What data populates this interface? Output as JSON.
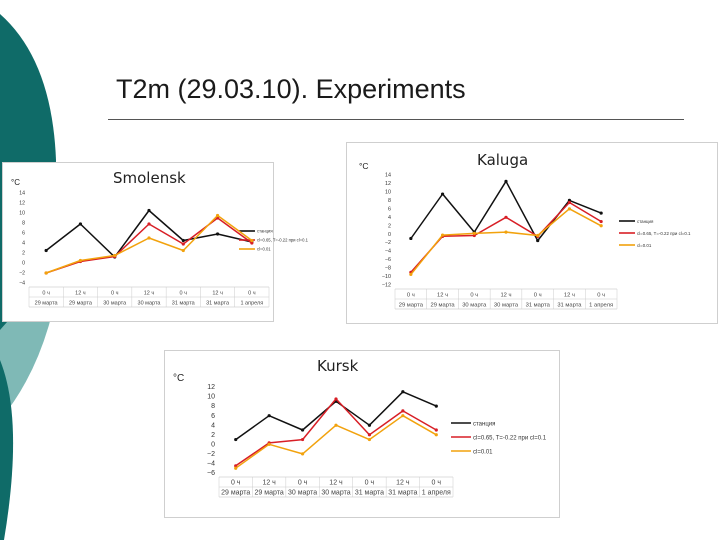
{
  "slide": {
    "title": "T2m (29.03.10). Experiments"
  },
  "colors": {
    "slide_teal": "#0f6b68",
    "slide_teal_light": "#7fb9b6",
    "observed": "#111111",
    "exp1": "#d81f26",
    "exp2": "#f2a20d"
  },
  "chart_data": [
    {
      "type": "line",
      "title": "Smolensk",
      "ylabel": "°C",
      "ylim": [
        -4,
        14
      ],
      "yticks": [
        -4,
        -2,
        0,
        2,
        4,
        6,
        8,
        10,
        12,
        14
      ],
      "x_time": [
        "0 ч",
        "12 ч",
        "0 ч",
        "12 ч",
        "0 ч",
        "12 ч",
        "0 ч"
      ],
      "x_date": [
        "29 марта",
        "29 марта",
        "30 марта",
        "30 марта",
        "31 марта",
        "31 марта",
        "1 апреля"
      ],
      "legend": "right",
      "series": [
        {
          "name": "станция",
          "color": "#111111",
          "values": [
            2.5,
            7.8,
            1.2,
            10.5,
            4.5,
            5.8,
            4.2
          ]
        },
        {
          "name": "cl=0.65, T=-0.22 при cl=0.1",
          "color": "#d81f26",
          "values": [
            -2.0,
            0.3,
            1.3,
            7.8,
            3.8,
            9.0,
            4.0
          ]
        },
        {
          "name": "cl=0.01",
          "color": "#f2a20d",
          "values": [
            -2.0,
            0.5,
            1.5,
            5.0,
            2.5,
            9.5,
            4.5
          ]
        }
      ]
    },
    {
      "type": "line",
      "title": "Kaluga",
      "ylabel": "°C",
      "ylim": [
        -12,
        14
      ],
      "yticks": [
        -12,
        -10,
        -8,
        -6,
        -4,
        -2,
        0,
        2,
        4,
        6,
        8,
        10,
        12,
        14
      ],
      "x_time": [
        "0 ч",
        "12 ч",
        "0 ч",
        "12 ч",
        "0 ч",
        "12 ч",
        "0 ч"
      ],
      "x_date": [
        "29 марта",
        "29 марта",
        "30 марта",
        "30 марта",
        "31 марта",
        "31 марта",
        "1 апреля"
      ],
      "legend": "right",
      "series": [
        {
          "name": "станция",
          "color": "#111111",
          "values": [
            -1.0,
            9.5,
            0.5,
            12.5,
            -1.5,
            8.0,
            5.0
          ]
        },
        {
          "name": "cl=0.65, T=-0.22 при cl=0.1",
          "color": "#d81f26",
          "values": [
            -9.0,
            -0.5,
            -0.3,
            4.0,
            -0.5,
            7.5,
            3.0
          ]
        },
        {
          "name": "cl=0.01",
          "color": "#f2a20d",
          "values": [
            -9.5,
            -0.2,
            0.2,
            0.5,
            -0.3,
            6.0,
            2.0
          ]
        }
      ]
    },
    {
      "type": "line",
      "title": "Kursk",
      "ylabel": "°C",
      "ylim": [
        -6,
        12
      ],
      "yticks": [
        -6,
        -4,
        -2,
        0,
        2,
        4,
        6,
        8,
        10,
        12
      ],
      "x_time": [
        "0 ч",
        "12 ч",
        "0 ч",
        "12 ч",
        "0 ч",
        "12 ч",
        "0 ч"
      ],
      "x_date": [
        "29 марта",
        "29 марта",
        "30 марта",
        "30 марта",
        "31 марта",
        "31 марта",
        "1 апреля"
      ],
      "legend": "right",
      "series": [
        {
          "name": "станция",
          "color": "#111111",
          "values": [
            1.0,
            6.0,
            3.0,
            9.0,
            4.0,
            11.0,
            8.0
          ]
        },
        {
          "name": "cl=0.65, T=-0.22 при cl=0.1",
          "color": "#d81f26",
          "values": [
            -4.5,
            0.3,
            1.0,
            9.5,
            2.0,
            7.0,
            3.0
          ]
        },
        {
          "name": "cl=0.01",
          "color": "#f2a20d",
          "values": [
            -5.0,
            0.0,
            -2.0,
            4.0,
            1.0,
            6.0,
            2.0
          ]
        }
      ]
    }
  ]
}
